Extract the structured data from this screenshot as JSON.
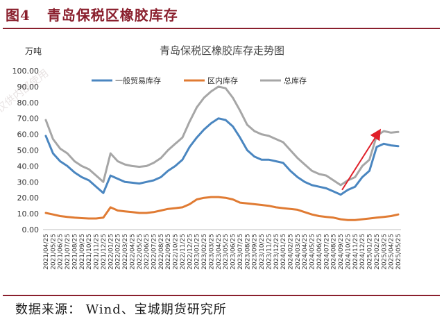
{
  "figure": {
    "number_label": "图4",
    "title": "青岛保税区橡胶库存",
    "source": "数据来源： Wind、宝城期货研究所",
    "watermark": "仅供内部使用"
  },
  "chart_data": {
    "type": "line",
    "title": "青岛保税区橡胶库存走势图",
    "unit_label": "万吨",
    "ylim": [
      0,
      100
    ],
    "yticks": [
      "0.00",
      "10.00",
      "20.00",
      "30.00",
      "40.00",
      "50.00",
      "60.00",
      "70.00",
      "80.00",
      "90.00",
      "100.00"
    ],
    "grid": false,
    "legend": "top",
    "x_labels": [
      "2021/04/25",
      "2021/05/25",
      "2021/06/25",
      "2021/07/25",
      "2021/08/25",
      "2021/09/25",
      "2021/10/25",
      "2021/11/25",
      "2021/12/25",
      "2022/01/25",
      "2022/02/25",
      "2022/03/25",
      "2022/04/25",
      "2022/05/25",
      "2022/06/25",
      "2022/07/25",
      "2022/08/25",
      "2022/09/25",
      "2022/10/25",
      "2022/11/25",
      "2022/12/25",
      "2023/01/25",
      "2023/02/25",
      "2023/03/25",
      "2023/04/25",
      "2023/05/25",
      "2023/06/25",
      "2023/07/25",
      "2023/08/25",
      "2023/09/25",
      "2023/10/25",
      "2023/11/25",
      "2023/12/25",
      "2024/01/25",
      "2024/02/25",
      "2024/03/25",
      "2024/04/25",
      "2024/05/25",
      "2024/06/25",
      "2024/07/25",
      "2024/08/25",
      "2024/09/25",
      "2024/10/25",
      "2024/11/25",
      "2024/12/25",
      "2025/01/25",
      "2025/02/25",
      "2025/03/25",
      "2025/04/25",
      "2025/05/25"
    ],
    "series": [
      {
        "name": "一般贸易库存",
        "color": "#4a86c0",
        "values": [
          59,
          48,
          43,
          40,
          36,
          33,
          31,
          27,
          23,
          34,
          32,
          30,
          29.5,
          29,
          30,
          31,
          33,
          37,
          40,
          44,
          52,
          58,
          63,
          67,
          70,
          69,
          65,
          58,
          50,
          46,
          44,
          44,
          43,
          42,
          37,
          33,
          30,
          28,
          27,
          26,
          24,
          22,
          25,
          27,
          33,
          37,
          52,
          54,
          53,
          52.5
        ]
      },
      {
        "name": "区内库存",
        "color": "#e07b33",
        "values": [
          10.5,
          9.5,
          8.5,
          8,
          7.5,
          7.2,
          7,
          7,
          7.5,
          14,
          12,
          11.5,
          11,
          10.5,
          10.5,
          11,
          12,
          13,
          13.5,
          14,
          16,
          19,
          20,
          20.5,
          20.5,
          20,
          19,
          17,
          16.5,
          16,
          15.5,
          15,
          14,
          13.5,
          13,
          12.5,
          11,
          9.5,
          8.5,
          8,
          7.5,
          6.5,
          6,
          6,
          6.5,
          7,
          7.5,
          8,
          8.5,
          9.5
        ]
      },
      {
        "name": "总库存",
        "color": "#a6a6a6",
        "values": [
          69,
          57,
          51,
          48,
          43,
          40,
          38,
          34,
          30,
          48,
          43,
          41,
          40,
          39.5,
          40,
          42,
          45,
          50,
          54,
          58,
          68,
          77,
          83,
          87,
          90,
          89,
          83,
          75,
          66,
          62,
          60,
          59,
          57,
          55,
          50,
          45,
          41,
          37,
          35,
          34,
          31,
          28,
          31,
          33,
          40,
          44,
          59,
          62,
          61,
          61.5
        ]
      }
    ],
    "annotation": "arrow"
  }
}
